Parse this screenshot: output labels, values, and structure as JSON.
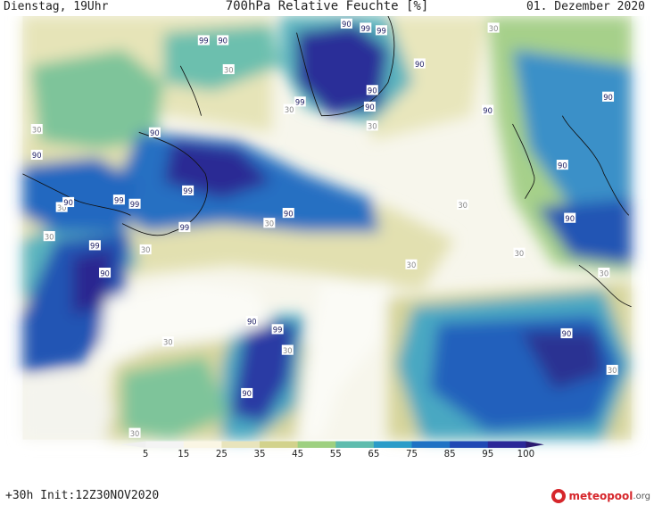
{
  "header": {
    "left": "Dienstag, 19Uhr",
    "title": "700hPa Relative Feuchte [%]",
    "right": "01. Dezember 2020"
  },
  "footer": {
    "left": "+30h Init:12Z30NOV2020",
    "logo_main": "meteopool",
    "logo_suffix": ".org"
  },
  "colorbar": {
    "labels": [
      "5",
      "15",
      "25",
      "35",
      "45",
      "55",
      "65",
      "75",
      "85",
      "95",
      "100"
    ],
    "colors": [
      "#f4f4f4",
      "#faf6e4",
      "#e8e4bc",
      "#d2d28c",
      "#9ed080",
      "#5ebcae",
      "#2a9cc8",
      "#1f72c4",
      "#1f48b4",
      "#2a2898",
      "#2a1a70"
    ]
  },
  "map_labels": [
    {
      "t": "99"
    },
    {
      "t": "90"
    },
    {
      "t": "30"
    },
    {
      "t": "90"
    },
    {
      "t": "99"
    },
    {
      "t": "99"
    },
    {
      "t": "90"
    },
    {
      "t": "30"
    },
    {
      "t": "90"
    },
    {
      "t": "99"
    },
    {
      "t": "30"
    },
    {
      "t": "90"
    },
    {
      "t": "90"
    },
    {
      "t": "30"
    },
    {
      "t": "90"
    },
    {
      "t": "30"
    },
    {
      "t": "90"
    },
    {
      "t": "90"
    },
    {
      "t": "90"
    },
    {
      "t": "99"
    },
    {
      "t": "99"
    },
    {
      "t": "30"
    },
    {
      "t": "90"
    },
    {
      "t": "99"
    },
    {
      "t": "99"
    },
    {
      "t": "30"
    },
    {
      "t": "90"
    },
    {
      "t": "30"
    },
    {
      "t": "30"
    },
    {
      "t": "30"
    },
    {
      "t": "99"
    },
    {
      "t": "90"
    },
    {
      "t": "30"
    },
    {
      "t": "90"
    },
    {
      "t": "30"
    },
    {
      "t": "30"
    },
    {
      "t": "90"
    },
    {
      "t": "99"
    },
    {
      "t": "30"
    },
    {
      "t": "90"
    },
    {
      "t": "90"
    },
    {
      "t": "30"
    },
    {
      "t": "30"
    },
    {
      "t": "30"
    },
    {
      "t": "90"
    }
  ]
}
